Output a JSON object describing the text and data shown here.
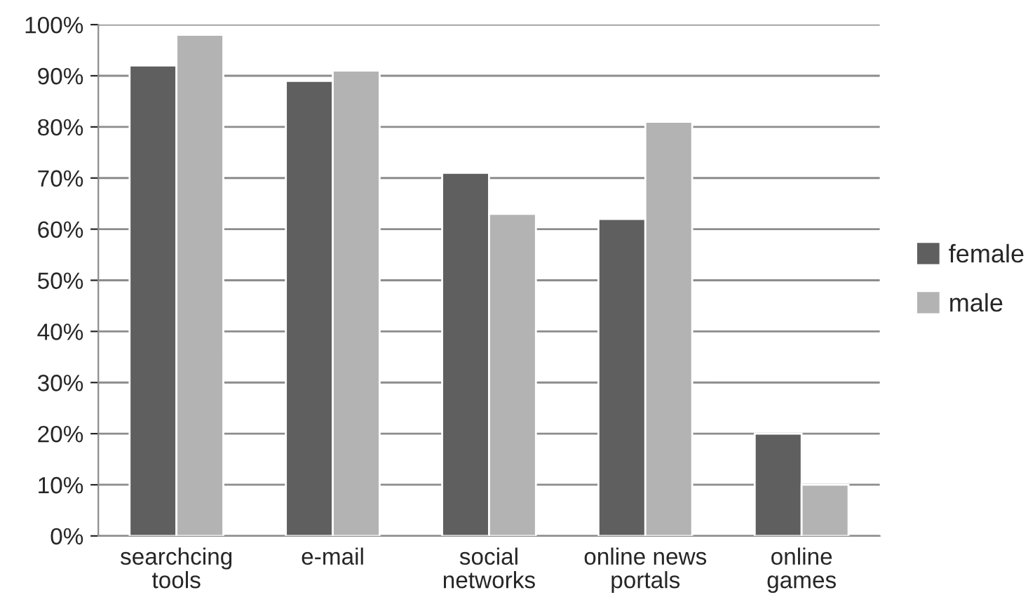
{
  "chart_data": {
    "type": "bar",
    "categories": [
      "searchcing\ntools",
      "e-mail",
      "social\nnetworks",
      "online news\nportals",
      "online\ngames"
    ],
    "series": [
      {
        "name": "female",
        "color": "#5f5f5f",
        "values": [
          92,
          89,
          71,
          62,
          20
        ]
      },
      {
        "name": "male",
        "color": "#b3b3b3",
        "values": [
          98,
          91,
          63,
          81,
          10
        ]
      }
    ],
    "ylim": [
      0,
      100
    ],
    "yticks": [
      {
        "value": 0,
        "label": "0%"
      },
      {
        "value": 10,
        "label": "10%"
      },
      {
        "value": 20,
        "label": "20%"
      },
      {
        "value": 30,
        "label": "30%"
      },
      {
        "value": 40,
        "label": "40%"
      },
      {
        "value": 50,
        "label": "50%"
      },
      {
        "value": 60,
        "label": "60%"
      },
      {
        "value": 70,
        "label": "70%"
      },
      {
        "value": 80,
        "label": "80%"
      },
      {
        "value": 90,
        "label": "90%"
      },
      {
        "value": 100,
        "label": "100%"
      }
    ],
    "grid": "y",
    "legend": "right"
  }
}
